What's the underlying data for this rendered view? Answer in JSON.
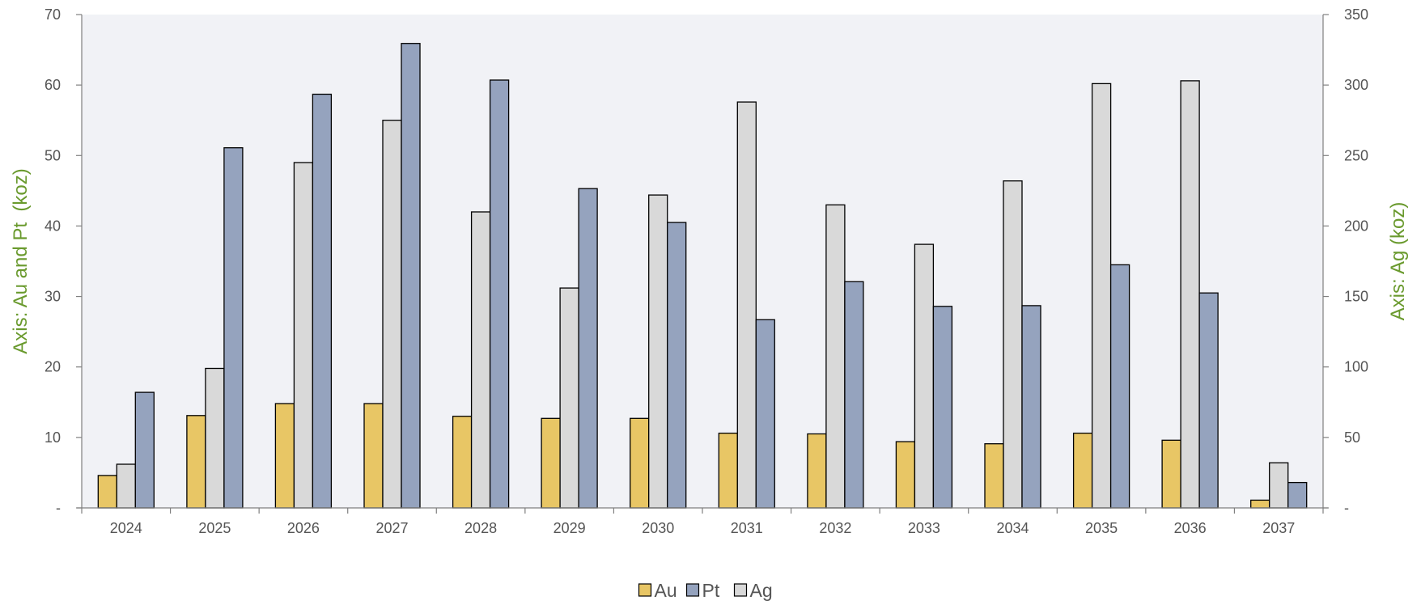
{
  "chart_data": {
    "type": "bar",
    "categories": [
      "2024",
      "2025",
      "2026",
      "2027",
      "2028",
      "2029",
      "2030",
      "2031",
      "2032",
      "2033",
      "2034",
      "2035",
      "2036",
      "2037"
    ],
    "series": [
      {
        "name": "Au",
        "axis": "left",
        "color": "#E8C665",
        "values": [
          4.6,
          13.1,
          14.8,
          14.8,
          13.0,
          12.7,
          12.7,
          10.6,
          10.5,
          9.4,
          9.1,
          10.6,
          9.6,
          1.1
        ]
      },
      {
        "name": "Pt",
        "axis": "left",
        "color": "#95A3BE",
        "values": [
          16.4,
          51.1,
          58.7,
          65.9,
          60.7,
          45.3,
          40.5,
          26.7,
          32.1,
          28.6,
          28.7,
          34.5,
          30.5,
          3.6
        ]
      },
      {
        "name": "Ag",
        "axis": "right",
        "color": "#D9D9D9",
        "values": [
          31,
          99,
          245,
          275,
          210,
          156,
          222,
          288,
          215,
          187,
          232,
          301,
          303,
          32
        ]
      }
    ],
    "series_order_in_group": [
      "Au",
      "Ag",
      "Pt"
    ],
    "y_left": {
      "label": "Axis: Au and Pt  (koz)",
      "ylim": [
        0,
        70
      ],
      "ticks": [
        "-",
        "10",
        "20",
        "30",
        "40",
        "50",
        "60",
        "70"
      ],
      "label_color": "#6A9A2E"
    },
    "y_right": {
      "label": "Axis: Ag (koz)",
      "ylim": [
        0,
        350
      ],
      "ticks": [
        "-",
        "50",
        "100",
        "150",
        "200",
        "250",
        "300",
        "350"
      ],
      "label_color": "#6A9A2E"
    },
    "plot_background": "#F1F2F6",
    "grid": false,
    "legend": {
      "position": "bottom-center",
      "entries": [
        "Au",
        "Pt",
        "Ag"
      ]
    }
  }
}
